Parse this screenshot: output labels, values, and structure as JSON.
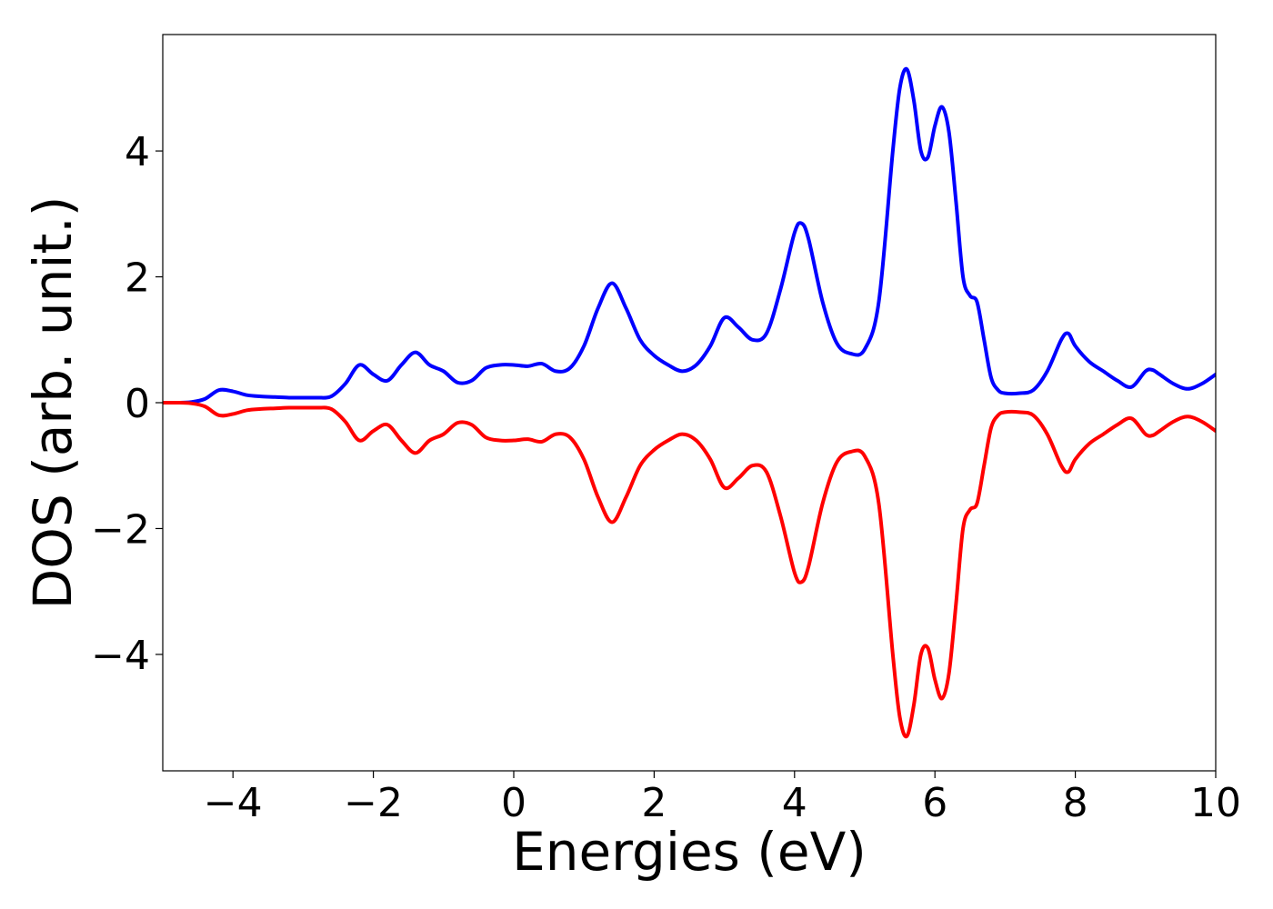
{
  "chart_data": {
    "type": "line",
    "title": "",
    "xlabel": "Energies (eV)",
    "ylabel": "DOS (arb. unit.)",
    "xlim": [
      -5,
      10
    ],
    "ylim": [
      -5.85,
      5.85
    ],
    "grid": false,
    "legend": "none",
    "x_ticks": [
      -4,
      -2,
      0,
      2,
      4,
      6,
      8,
      10
    ],
    "x_tick_labels": [
      "−4",
      "−2",
      "0",
      "2",
      "4",
      "6",
      "8",
      "10"
    ],
    "y_ticks": [
      -4,
      -2,
      0,
      2,
      4
    ],
    "y_tick_labels": [
      "−4",
      "−2",
      "0",
      "2",
      "4"
    ],
    "x": [
      -5.0,
      -4.8,
      -4.6,
      -4.4,
      -4.2,
      -4.0,
      -3.8,
      -3.6,
      -3.4,
      -3.2,
      -3.0,
      -2.8,
      -2.6,
      -2.4,
      -2.2,
      -2.0,
      -1.8,
      -1.6,
      -1.4,
      -1.2,
      -1.0,
      -0.8,
      -0.6,
      -0.4,
      -0.2,
      0.0,
      0.2,
      0.4,
      0.6,
      0.8,
      1.0,
      1.2,
      1.4,
      1.6,
      1.8,
      2.0,
      2.2,
      2.4,
      2.6,
      2.8,
      3.0,
      3.2,
      3.4,
      3.6,
      3.8,
      4.0,
      4.1,
      4.2,
      4.4,
      4.6,
      4.8,
      5.0,
      5.2,
      5.4,
      5.5,
      5.6,
      5.7,
      5.8,
      5.9,
      6.0,
      6.1,
      6.2,
      6.3,
      6.4,
      6.5,
      6.6,
      6.7,
      6.8,
      6.9,
      7.0,
      7.2,
      7.4,
      7.6,
      7.8,
      7.9,
      8.0,
      8.2,
      8.4,
      8.6,
      8.8,
      9.0,
      9.1,
      9.2,
      9.4,
      9.6,
      9.8,
      10.0
    ],
    "series": [
      {
        "color": "#0000ff",
        "y": [
          0.0,
          0.0,
          0.01,
          0.06,
          0.2,
          0.18,
          0.12,
          0.1,
          0.09,
          0.08,
          0.08,
          0.08,
          0.1,
          0.3,
          0.6,
          0.45,
          0.35,
          0.6,
          0.8,
          0.6,
          0.5,
          0.32,
          0.35,
          0.55,
          0.6,
          0.6,
          0.58,
          0.62,
          0.5,
          0.55,
          0.9,
          1.5,
          1.9,
          1.5,
          1.0,
          0.75,
          0.6,
          0.5,
          0.6,
          0.9,
          1.35,
          1.2,
          1.0,
          1.1,
          1.8,
          2.7,
          2.85,
          2.6,
          1.6,
          0.95,
          0.78,
          0.85,
          1.6,
          4.0,
          5.0,
          5.3,
          4.8,
          4.0,
          3.9,
          4.4,
          4.7,
          4.3,
          3.2,
          2.0,
          1.7,
          1.6,
          1.0,
          0.4,
          0.2,
          0.15,
          0.15,
          0.2,
          0.5,
          1.0,
          1.1,
          0.9,
          0.65,
          0.5,
          0.35,
          0.25,
          0.5,
          0.52,
          0.45,
          0.3,
          0.22,
          0.3,
          0.45
        ]
      },
      {
        "color": "#ff0000",
        "y": [
          0.0,
          0.0,
          -0.01,
          -0.06,
          -0.2,
          -0.18,
          -0.12,
          -0.1,
          -0.09,
          -0.08,
          -0.08,
          -0.08,
          -0.1,
          -0.3,
          -0.6,
          -0.45,
          -0.35,
          -0.6,
          -0.8,
          -0.6,
          -0.5,
          -0.32,
          -0.35,
          -0.55,
          -0.6,
          -0.6,
          -0.58,
          -0.62,
          -0.5,
          -0.55,
          -0.9,
          -1.5,
          -1.9,
          -1.5,
          -1.0,
          -0.75,
          -0.6,
          -0.5,
          -0.6,
          -0.9,
          -1.35,
          -1.2,
          -1.0,
          -1.1,
          -1.8,
          -2.7,
          -2.85,
          -2.6,
          -1.6,
          -0.95,
          -0.78,
          -0.85,
          -1.6,
          -4.0,
          -5.0,
          -5.3,
          -4.8,
          -4.0,
          -3.9,
          -4.4,
          -4.7,
          -4.3,
          -3.2,
          -2.0,
          -1.7,
          -1.6,
          -1.0,
          -0.4,
          -0.2,
          -0.15,
          -0.15,
          -0.2,
          -0.5,
          -1.0,
          -1.1,
          -0.9,
          -0.65,
          -0.5,
          -0.35,
          -0.25,
          -0.5,
          -0.52,
          -0.45,
          -0.3,
          -0.22,
          -0.3,
          -0.45
        ]
      }
    ]
  }
}
